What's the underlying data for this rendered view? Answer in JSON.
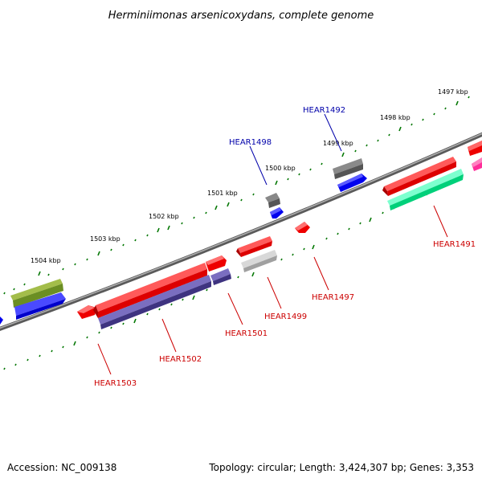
{
  "title": "Herminiimonas arsenicoxydans, complete genome",
  "footer": {
    "accession": "Accession: NC_009138",
    "topology": "Topology: circular; Length: 3,424,307 bp; Genes: 3,353"
  },
  "kbp_labels": [
    "1497 kbp",
    "1498 kbp",
    "1499 kbp",
    "1500 kbp",
    "1501 kbp",
    "1502 kbp",
    "1503 kbp",
    "1504 kbp"
  ],
  "gene_labels": [
    {
      "name": "HEAR1492",
      "strand": "forward"
    },
    {
      "name": "HEAR1498",
      "strand": "forward"
    },
    {
      "name": "HEAR1491",
      "strand": "reverse"
    },
    {
      "name": "HEAR1497",
      "strand": "reverse"
    },
    {
      "name": "HEAR1499",
      "strand": "reverse"
    },
    {
      "name": "HEAR1501",
      "strand": "reverse"
    },
    {
      "name": "HEAR1502",
      "strand": "reverse"
    },
    {
      "name": "HEAR1503",
      "strand": "reverse"
    }
  ],
  "colors": {
    "forward_label": "#0000aa",
    "reverse_label": "#cc0000",
    "backbone": "#808080",
    "tick": "#007700",
    "cds_red": "#ee0000",
    "cds_blue": "#0000ee",
    "cds_gray": "#555555",
    "cds_purple": "#4b3e8c",
    "cds_olive": "#6b8e23",
    "cds_green": "#00e68c",
    "cds_lightgray": "#b8b8b8",
    "cds_magenta": "#ff2d9a"
  }
}
